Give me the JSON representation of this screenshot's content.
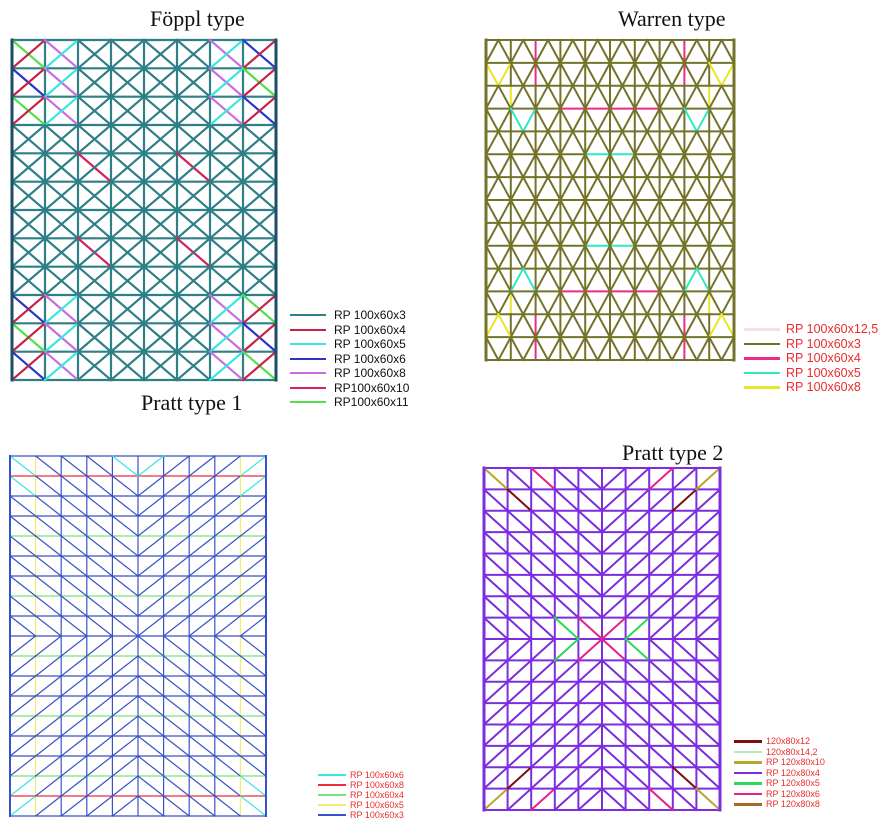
{
  "panels": [
    {
      "id": "foppl",
      "title": "Föppl type",
      "pattern": "foppl",
      "base_color": "#2e7f86",
      "legend": [
        {
          "label": "RP 100x60x3",
          "color": "#2e7f86"
        },
        {
          "label": "RP 100x60x4",
          "color": "#c8224a"
        },
        {
          "label": "RP 100x60x5",
          "color": "#39e6e0"
        },
        {
          "label": "RP 100x60x6",
          "color": "#2b35c8"
        },
        {
          "label": "RP 100x60x8",
          "color": "#c86ee0"
        },
        {
          "label": "RP100x60x10",
          "color": "#d0245e"
        },
        {
          "label": "RP100x60x11",
          "color": "#52e04a"
        }
      ]
    },
    {
      "id": "warren",
      "title": "Warren type",
      "pattern": "warren",
      "base_color": "#74732a",
      "legend": [
        {
          "label": "RP 100x60x12,5",
          "color": "#f6dfe6"
        },
        {
          "label": "RP 100x60x3",
          "color": "#74732a"
        },
        {
          "label": "RP 100x60x4",
          "color": "#ec2a88"
        },
        {
          "label": "RP 100x60x5",
          "color": "#2ee8c2"
        },
        {
          "label": "RP 100x60x8",
          "color": "#e8e62a"
        }
      ]
    },
    {
      "id": "pratt1",
      "title": "Pratt type 1",
      "pattern": "pratt1",
      "base_color": "#3a52c8",
      "legend": [
        {
          "label": "RP 100x60x6",
          "color": "#39e6e0"
        },
        {
          "label": "RP 100x60x8",
          "color": "#ee2c3c"
        },
        {
          "label": "RP 100x60x4",
          "color": "#7ee07a"
        },
        {
          "label": "RP 100x60x5",
          "color": "#f2ee6a"
        },
        {
          "label": "RP 100x60x3",
          "color": "#3a52c8"
        }
      ]
    },
    {
      "id": "pratt2",
      "title": "Pratt type 2",
      "pattern": "pratt2",
      "base_color": "#7a2ee0",
      "legend": [
        {
          "label": "120x80x12",
          "color": "#7a1010"
        },
        {
          "label": "120x80x14,2",
          "color": "#b8ecc0"
        },
        {
          "label": "RP 120x80x10",
          "color": "#b8a82a"
        },
        {
          "label": "RP 120x80x4",
          "color": "#7a2ee0"
        },
        {
          "label": "RP 120x80x5",
          "color": "#2ed858"
        },
        {
          "label": "RP 120x80x6",
          "color": "#e8208a"
        },
        {
          "label": "RP 120x80x8",
          "color": "#a86a2a"
        }
      ]
    }
  ]
}
